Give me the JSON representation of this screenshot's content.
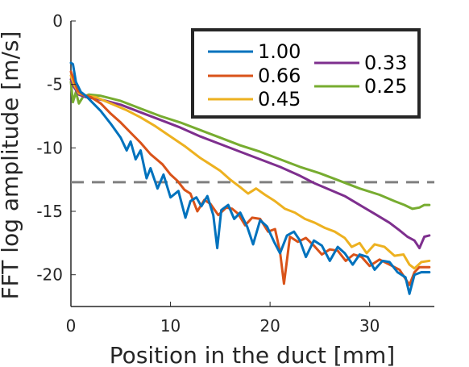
{
  "chart_data": {
    "type": "line",
    "title": "",
    "xlabel": "Position in the duct [mm]",
    "ylabel": "FFT log amplitude [m/s]",
    "xlim": [
      0,
      36.5
    ],
    "ylim": [
      -22.5,
      0
    ],
    "xticks": [
      0,
      10,
      20,
      30
    ],
    "yticks": [
      0,
      -5,
      -10,
      -15,
      -20
    ],
    "xtick_labels": [
      "0",
      "10",
      "20",
      "30"
    ],
    "ytick_labels": [
      "0",
      "-5",
      "-10",
      "-15",
      "-20"
    ],
    "grid": false,
    "legend_position": "top-right",
    "threshold": {
      "y": -12.7,
      "color": "#808080",
      "style": "dashed"
    },
    "series": [
      {
        "name": "1.00",
        "color": "#0072BD",
        "x": [
          0,
          0.2,
          0.5,
          1,
          1.5,
          2,
          3,
          4,
          5,
          5.6,
          6,
          6.5,
          7,
          7.6,
          8,
          8.7,
          9.3,
          10,
          10.8,
          11.5,
          12,
          12.6,
          13.1,
          13.7,
          14.3,
          14.7,
          15.1,
          15.8,
          16.4,
          17,
          17.7,
          18.3,
          19,
          19.7,
          20.4,
          21,
          21.7,
          22.4,
          23,
          23.6,
          24.4,
          25.2,
          26,
          26.8,
          27.5,
          28.3,
          29,
          29.8,
          30.5,
          31.3,
          32,
          32.8,
          33.6,
          34,
          34.5,
          35.2,
          36
        ],
        "y": [
          -3.3,
          -3.4,
          -4.8,
          -5.6,
          -5.9,
          -6.3,
          -7.1,
          -8.1,
          -9.2,
          -10.2,
          -9.5,
          -10.9,
          -10.2,
          -12.4,
          -11.6,
          -13.2,
          -12.1,
          -13.9,
          -13.4,
          -15.5,
          -14.2,
          -13.9,
          -14.6,
          -13.8,
          -15.3,
          -17.9,
          -14.9,
          -14.5,
          -15.6,
          -15.1,
          -16.2,
          -17.6,
          -15.7,
          -16.2,
          -17.4,
          -18.3,
          -16.9,
          -16.6,
          -17.3,
          -18.6,
          -17.3,
          -17.7,
          -18.9,
          -17.8,
          -18.3,
          -19.2,
          -18.4,
          -18.6,
          -19.6,
          -18.9,
          -19.0,
          -19.8,
          -20.2,
          -21.5,
          -20.0,
          -19.8,
          -19.8
        ]
      },
      {
        "name": "0.66",
        "color": "#D95319",
        "x": [
          0,
          0.3,
          0.7,
          1.2,
          2,
          3,
          4,
          5,
          6,
          7,
          8,
          8.6,
          9.2,
          10,
          10.7,
          11.4,
          12,
          12.7,
          13.4,
          14,
          14.8,
          15.6,
          16.2,
          16.8,
          17.5,
          18.2,
          19,
          19.8,
          20.5,
          21,
          21.4,
          22,
          22.8,
          23.6,
          24.4,
          25.2,
          26,
          26.8,
          27.6,
          28.4,
          29.2,
          30,
          31,
          32,
          33,
          34,
          34.5,
          35,
          36
        ],
        "y": [
          -4.0,
          -4.6,
          -5.5,
          -5.8,
          -6.0,
          -6.5,
          -7.3,
          -8.0,
          -8.8,
          -9.6,
          -10.5,
          -10.9,
          -11.3,
          -12.1,
          -12.6,
          -13.3,
          -13.6,
          -15.0,
          -14.1,
          -14.4,
          -15.3,
          -14.7,
          -14.8,
          -15.2,
          -16.1,
          -15.5,
          -15.6,
          -16.6,
          -16.4,
          -18.2,
          -20.7,
          -17.0,
          -17.4,
          -17.1,
          -17.7,
          -18.4,
          -18.0,
          -18.1,
          -18.9,
          -18.4,
          -18.6,
          -19.3,
          -18.8,
          -19.2,
          -19.6,
          -20.8,
          -19.8,
          -19.4,
          -19.4
        ]
      },
      {
        "name": "0.45",
        "color": "#EDB120",
        "x": [
          0,
          0.3,
          0.8,
          1.5,
          2.5,
          4,
          5.5,
          7,
          8.5,
          10,
          11.5,
          13,
          14,
          15,
          16,
          17,
          17.8,
          18.6,
          19.5,
          20.5,
          21.5,
          22.5,
          23.5,
          24.5,
          25.5,
          26.5,
          27.5,
          28.2,
          29,
          29.7,
          30.5,
          31.5,
          32.5,
          33.4,
          34,
          34.5,
          35.2,
          36
        ],
        "y": [
          -4.3,
          -5.0,
          -5.7,
          -5.9,
          -6.0,
          -6.5,
          -7.0,
          -7.6,
          -8.3,
          -9.1,
          -9.9,
          -10.8,
          -11.3,
          -11.8,
          -12.5,
          -13.1,
          -13.6,
          -13.2,
          -13.7,
          -14.2,
          -14.8,
          -15.1,
          -15.6,
          -15.9,
          -16.3,
          -16.6,
          -17.1,
          -17.8,
          -17.5,
          -18.3,
          -17.6,
          -17.8,
          -18.5,
          -18.4,
          -19.2,
          -19.5,
          -19.0,
          -18.9
        ]
      },
      {
        "name": "0.33",
        "color": "#7E2F8E",
        "x": [
          0,
          0.3,
          0.8,
          1.5,
          3,
          5,
          7,
          9,
          11,
          13,
          15,
          17,
          19,
          21,
          23,
          24.5,
          26,
          27.5,
          29,
          30.5,
          32,
          33,
          33.8,
          34.5,
          35,
          35.5,
          36
        ],
        "y": [
          -4.6,
          -5.2,
          -5.8,
          -6.0,
          -6.2,
          -6.6,
          -7.2,
          -7.8,
          -8.4,
          -9.1,
          -9.7,
          -10.3,
          -10.9,
          -11.5,
          -12.2,
          -12.8,
          -13.3,
          -13.8,
          -14.5,
          -15.2,
          -15.9,
          -16.5,
          -17.0,
          -17.3,
          -17.9,
          -17.0,
          -16.9
        ]
      },
      {
        "name": "0.25",
        "color": "#77AC30",
        "x": [
          0,
          0.2,
          0.5,
          0.8,
          1.2,
          1.8,
          3,
          5,
          7,
          9,
          11,
          13,
          15,
          17,
          19,
          21,
          23,
          25,
          27,
          29,
          31,
          32.5,
          33.5,
          34.3,
          35,
          35.5,
          36
        ],
        "y": [
          -4.8,
          -6.4,
          -5.6,
          -6.5,
          -6.0,
          -5.8,
          -5.9,
          -6.3,
          -6.9,
          -7.5,
          -8.0,
          -8.6,
          -9.2,
          -9.8,
          -10.3,
          -10.9,
          -11.5,
          -12.0,
          -12.6,
          -13.2,
          -13.7,
          -14.2,
          -14.5,
          -14.8,
          -14.7,
          -14.5,
          -14.5
        ]
      }
    ]
  }
}
